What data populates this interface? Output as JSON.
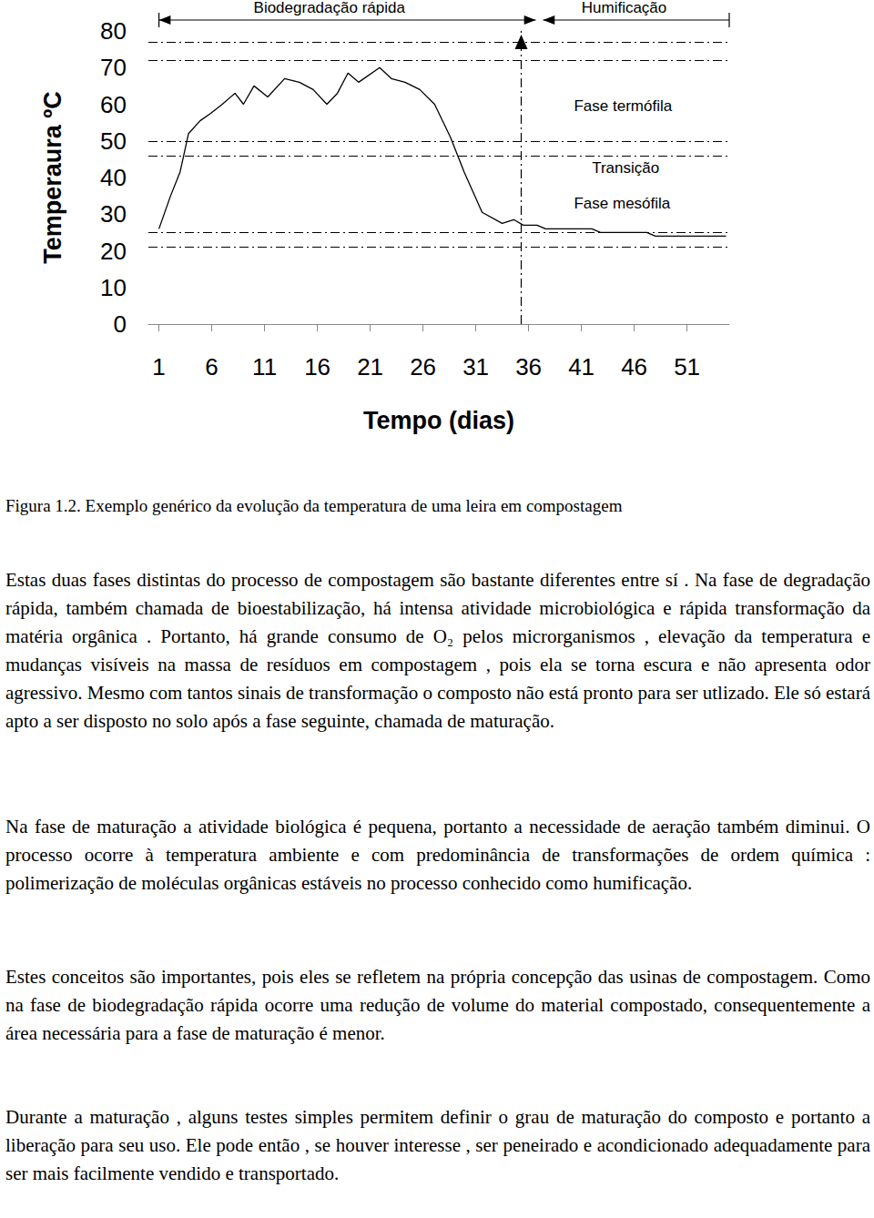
{
  "chart_data": {
    "type": "line",
    "y_label": "Temperaura ºC",
    "x_label": "Tempo (dias)",
    "x": [
      1,
      2.1,
      3,
      3.8,
      4.9,
      5.9,
      7,
      8.2,
      9,
      10,
      11.3,
      12.9,
      14.3,
      15.6,
      16.9,
      17.9,
      18.9,
      19.9,
      21.9,
      23,
      24.3,
      25.7,
      27.1,
      28.6,
      29.9,
      31.6,
      33.5,
      34.6,
      35.5,
      36.8,
      37.6,
      42,
      42.8,
      47.2,
      48,
      54.7
    ],
    "values": [
      26,
      35,
      41.5,
      52,
      55.5,
      57.5,
      60,
      63,
      60,
      65,
      62,
      67,
      66,
      64,
      60,
      63,
      68.5,
      66,
      70,
      67,
      66,
      64,
      60,
      51,
      41.5,
      30.5,
      27.5,
      28.5,
      27,
      27,
      26,
      26,
      25,
      25,
      24,
      24
    ],
    "color": "#000000",
    "xlim": [
      0,
      55
    ],
    "xticks": [
      1,
      6,
      11,
      16,
      21,
      26,
      31,
      36,
      41,
      46,
      51
    ],
    "ylim": [
      0,
      80
    ],
    "yticks": [
      0,
      10,
      20,
      30,
      40,
      50,
      60,
      70,
      80
    ],
    "grid": false,
    "reference_lines": [
      77,
      72,
      50,
      46,
      25,
      21
    ],
    "phase_boundary": 35.3,
    "phases": [
      "Biodegradação rápida",
      "Humificação"
    ],
    "annotations": [
      {
        "text": "Fase termófila",
        "x": 40.3,
        "y": 59.5
      },
      {
        "text": "Transição",
        "x": 42,
        "y": 42.5
      },
      {
        "text": "Fase mesófila",
        "x": 40.3,
        "y": 33
      }
    ]
  },
  "document": {
    "caption": "Figura 1.2. Exemplo genérico da evolução da temperatura de uma leira em compostagem",
    "paragraphs": [
      "Estas duas fases distintas do processo de compostagem são bastante diferentes entre sí . Na fase de degradação rápida, também chamada de bioestabilização, há intensa atividade microbiológica e rápida transformação da matéria orgânica . Portanto, há grande consumo de O₂ pelos microrganismos , elevação da temperatura e mudanças visíveis na massa de resíduos em compostagem , pois ela se torna escura e não apresenta odor agressivo. Mesmo com tantos sinais de transformação o composto não está pronto para ser utlizado. Ele só estará apto a ser disposto no solo após a fase seguinte, chamada de maturação.",
      "Na fase de maturação a atividade biológica é pequena, portanto a necessidade de aeração também diminui. O processo ocorre à temperatura ambiente e com predominância de transformações de ordem química : polimerização de moléculas orgânicas estáveis no processo conhecido como humificação.",
      "Estes conceitos são importantes, pois eles se refletem na própria concepção das usinas de compostagem. Como na fase de biodegradação rápida ocorre uma redução de volume do material compostado, consequentemente a área necessária para a fase de maturação é menor.",
      "Durante a maturação , alguns testes simples permitem definir o grau de maturação do composto e portanto a liberação para seu uso. Ele pode então , se houver interesse , ser peneirado e acondicionado adequadamente para ser mais facilmente vendido e transportado."
    ]
  }
}
